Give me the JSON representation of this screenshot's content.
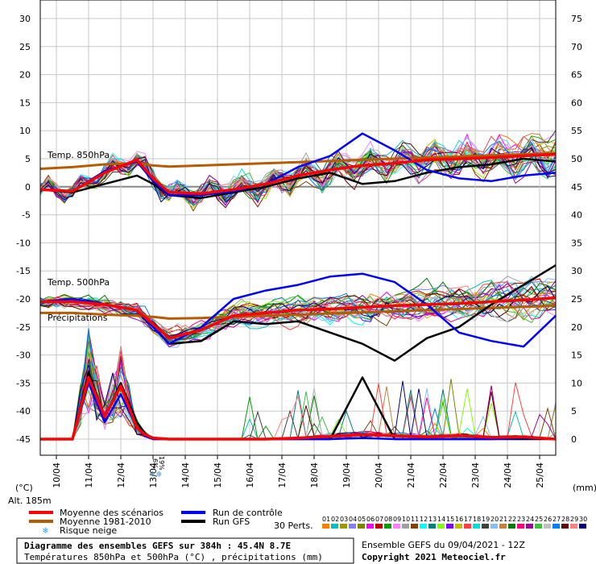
{
  "chart_data": {
    "type": "line",
    "title": "Diagramme des ensembles GEFS sur 384h : 45.4N 8.7E",
    "subtitle": "Températures 850hPa et 500hPa (°C) , précipitations (mm)",
    "run_info": "Ensemble GEFS du 09/04/2021 - 12Z",
    "copyright": "Copyright 2021 Meteociel.fr",
    "altitude": "Alt. 185m",
    "y_left_unit": "(°C)",
    "y_right_unit": "(mm)",
    "y_left_ticks": [
      "30",
      "25",
      "20",
      "15",
      "10",
      "5",
      "0",
      "-5",
      "-10",
      "-15",
      "-20",
      "-25",
      "-30",
      "-35",
      "-40",
      "-45"
    ],
    "y_right_ticks": [
      "75",
      "70",
      "65",
      "60",
      "55",
      "50",
      "45",
      "40",
      "35",
      "30",
      "25",
      "20",
      "15",
      "10",
      "5",
      "0"
    ],
    "ylim_left": [
      -45,
      30
    ],
    "ylim_right": [
      0,
      75
    ],
    "x_range_hours": [
      0,
      384
    ],
    "date_ticks": [
      "10/04",
      "11/04",
      "12/04",
      "13/04",
      "14/04",
      "15/04",
      "16/04",
      "17/04",
      "18/04",
      "19/04",
      "20/04",
      "21/04",
      "22/04",
      "23/04",
      "24/04",
      "25/04"
    ],
    "grid": true,
    "annotations": [
      "Temp. 850hPa",
      "Temp. 500hPa",
      "Précipitations"
    ],
    "snow_risk_labels": [
      "6%",
      "19%"
    ],
    "legend": {
      "mean": "Moyenne des scénarios",
      "climo": "Moyenne 1981-2010",
      "snow": "Risque neige",
      "control": "Run de contrôle",
      "gfs": "Run GFS",
      "perts": "30 Perts.",
      "perturbation_numbers": [
        "01",
        "02",
        "03",
        "04",
        "05",
        "06",
        "07",
        "08",
        "09",
        "10",
        "11",
        "12",
        "13",
        "14",
        "15",
        "16",
        "17",
        "18",
        "19",
        "20",
        "21",
        "22",
        "23",
        "24",
        "25",
        "26",
        "27",
        "28",
        "29",
        "30"
      ]
    },
    "colors": {
      "mean": "#ff0000",
      "climo": "#b85a00",
      "control": "#0000ff",
      "gfs": "#000000",
      "snow": "#3aa0e0",
      "perturbations": [
        "#ff8000",
        "#00c0c0",
        "#9a9a00",
        "#8080ff",
        "#808000",
        "#ff00ff",
        "#c00000",
        "#00a000",
        "#ff80ff",
        "#a0a0a0",
        "#804000",
        "#00ffff",
        "#008080",
        "#80ff00",
        "#8000ff",
        "#c0c000",
        "#ff4040",
        "#00e0e0",
        "#404040",
        "#80c0ff",
        "#c08040",
        "#008000",
        "#ff0080",
        "#a000a0",
        "#40c040",
        "#c0c0c0",
        "#0080ff",
        "#600000",
        "#ff8080",
        "#000080"
      ]
    },
    "t850": {
      "x": [
        0,
        24,
        48,
        72,
        84,
        96,
        120,
        144,
        168,
        192,
        216,
        240,
        264,
        288,
        312,
        336,
        360,
        384
      ],
      "mean": [
        -0.5,
        -0.8,
        2.5,
        4.8,
        1.5,
        -1.0,
        -1.2,
        -0.5,
        0.5,
        2.0,
        3.0,
        3.8,
        4.2,
        4.8,
        5.0,
        5.2,
        5.5,
        5.8
      ],
      "climo": [
        3.2,
        3.5,
        4.0,
        4.2,
        3.8,
        3.6,
        3.8,
        4.0,
        4.2,
        4.4,
        4.6,
        4.8,
        5.0,
        5.2,
        5.4,
        5.6,
        5.8,
        6.0
      ],
      "control": [
        -0.5,
        -0.8,
        2.8,
        4.5,
        1.0,
        -1.5,
        -1.5,
        -0.8,
        0.5,
        3.5,
        5.5,
        9.5,
        6.5,
        3.0,
        1.5,
        1.0,
        2.0,
        2.5
      ],
      "gfs": [
        -0.5,
        -1.0,
        0.5,
        2.0,
        0.5,
        -1.5,
        -2.0,
        -1.0,
        0.0,
        1.5,
        2.5,
        0.5,
        1.0,
        2.5,
        3.5,
        4.0,
        5.0,
        4.5
      ]
    },
    "t500": {
      "x": [
        0,
        24,
        48,
        72,
        84,
        96,
        120,
        144,
        168,
        192,
        216,
        240,
        264,
        288,
        312,
        336,
        360,
        384
      ],
      "mean": [
        -20.5,
        -20.5,
        -21.0,
        -22.0,
        -24.5,
        -27.0,
        -25.5,
        -23.0,
        -22.5,
        -22.0,
        -21.8,
        -21.5,
        -21.2,
        -21.0,
        -20.8,
        -20.5,
        -20.2,
        -19.8
      ],
      "climo": [
        -22.5,
        -22.5,
        -22.8,
        -23.0,
        -23.2,
        -23.5,
        -23.4,
        -23.2,
        -23.0,
        -22.8,
        -22.6,
        -22.4,
        -22.2,
        -22.0,
        -21.8,
        -21.6,
        -21.4,
        -21.2
      ],
      "control": [
        -20.5,
        -20.0,
        -21.0,
        -22.0,
        -25.0,
        -28.0,
        -25.0,
        -20.0,
        -18.5,
        -17.5,
        -16.0,
        -15.5,
        -17.0,
        -21.0,
        -26.0,
        -27.5,
        -28.5,
        -23.0
      ],
      "gfs": [
        -20.5,
        -20.5,
        -21.0,
        -22.0,
        -25.0,
        -28.0,
        -27.5,
        -24.0,
        -24.5,
        -24.0,
        -26.0,
        -28.0,
        -31.0,
        -27.0,
        -25.0,
        -21.0,
        -17.5,
        -14.0
      ]
    },
    "precip_mm": {
      "x": [
        0,
        24,
        36,
        48,
        60,
        72,
        78,
        84,
        96,
        120,
        144,
        168,
        192,
        216,
        240,
        264,
        288,
        312,
        336,
        360,
        384
      ],
      "mean": [
        0.0,
        0.0,
        11.0,
        4.0,
        9.5,
        2.0,
        0.8,
        0.2,
        0.0,
        0.0,
        0.0,
        0.0,
        0.2,
        0.5,
        0.8,
        0.6,
        0.4,
        0.6,
        0.3,
        0.4,
        0.0
      ],
      "control": [
        0.0,
        0.0,
        10.0,
        3.0,
        8.0,
        2.0,
        0.5,
        0.0,
        0.0,
        0.0,
        0.0,
        0.0,
        0.0,
        0.0,
        0.2,
        0.0,
        0.0,
        0.0,
        0.0,
        0.2,
        0.0
      ],
      "gfs": [
        0.0,
        0.0,
        12.0,
        4.0,
        10.0,
        3.0,
        1.0,
        0.0,
        0.0,
        0.0,
        0.0,
        0.0,
        0.0,
        0.0,
        11.0,
        0.0,
        0.0,
        0.0,
        0.0,
        0.0,
        0.0
      ]
    }
  }
}
